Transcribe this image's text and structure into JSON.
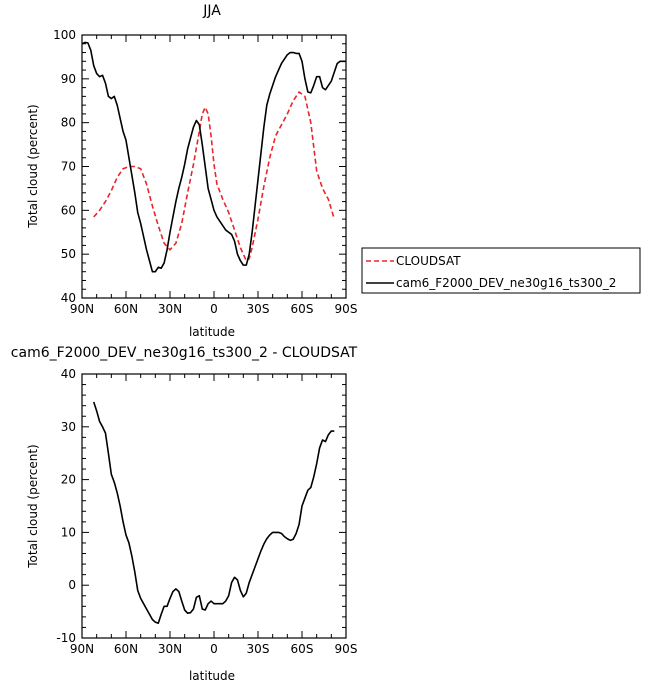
{
  "chart_data": [
    {
      "type": "line",
      "title": "JJA",
      "xlabel": "latitude",
      "ylabel": "Total cloud (percent)",
      "x_ticks": [
        "90N",
        "60N",
        "30N",
        "0",
        "30S",
        "60S",
        "90S"
      ],
      "x_tick_values": [
        90,
        60,
        30,
        0,
        -30,
        -60,
        -90
      ],
      "xlim": [
        90,
        -90
      ],
      "ylim": [
        40,
        100
      ],
      "y_ticks": [
        40,
        50,
        60,
        70,
        80,
        90,
        100
      ],
      "legend_position": "outside-right",
      "series": [
        {
          "name": "CLOUDSAT",
          "color": "#e8262b",
          "dash": "dashed",
          "x": [
            82,
            78,
            74,
            70,
            66,
            62,
            58,
            54,
            50,
            46,
            42,
            38,
            34,
            30,
            26,
            22,
            18,
            14,
            10,
            8,
            6,
            4,
            2,
            0,
            -2,
            -6,
            -10,
            -14,
            -18,
            -22,
            -24,
            -26,
            -30,
            -34,
            -38,
            -42,
            -46,
            -50,
            -54,
            -58,
            -62,
            -66,
            -70,
            -74,
            -78,
            -82
          ],
          "y": [
            58.5,
            60,
            62,
            64.5,
            67.5,
            69.5,
            70,
            70,
            69.5,
            66,
            61,
            56.5,
            52.5,
            51,
            52.5,
            57,
            64,
            70.5,
            78,
            82,
            83.5,
            82,
            77,
            70.5,
            66,
            62.5,
            59.5,
            55.5,
            51.5,
            48.5,
            49,
            51.5,
            58,
            65.5,
            72,
            77,
            79.5,
            82,
            85,
            87,
            86,
            80,
            69,
            65,
            62.5,
            58
          ]
        },
        {
          "name": "cam6_F2000_DEV_ne30g16_ts300_2",
          "color": "#000000",
          "dash": "solid",
          "x": [
            90,
            88,
            86,
            84,
            82,
            80,
            78,
            76,
            74,
            72,
            70,
            68,
            66,
            64,
            62,
            60,
            58,
            56,
            54,
            52,
            50,
            48,
            46,
            44,
            42,
            40,
            38,
            36,
            34,
            32,
            30,
            28,
            26,
            24,
            22,
            20,
            18,
            16,
            14,
            12,
            10,
            8,
            6,
            4,
            2,
            0,
            -2,
            -4,
            -6,
            -8,
            -10,
            -12,
            -14,
            -16,
            -18,
            -20,
            -22,
            -24,
            -26,
            -28,
            -30,
            -32,
            -34,
            -36,
            -38,
            -40,
            -42,
            -44,
            -46,
            -48,
            -50,
            -52,
            -54,
            -56,
            -58,
            -60,
            -62,
            -64,
            -66,
            -68,
            -70,
            -72,
            -74,
            -76,
            -78,
            -80,
            -82,
            -84,
            -86,
            -88,
            -90
          ],
          "y": [
            98,
            98.3,
            98.2,
            96.5,
            93,
            91.2,
            90.5,
            90.8,
            89,
            86,
            85.5,
            86,
            84,
            81,
            78,
            76,
            72,
            68,
            64,
            59.5,
            57,
            54,
            51,
            48.5,
            46,
            46,
            47,
            46.8,
            48,
            51,
            55,
            58.5,
            62,
            65,
            67.5,
            70.5,
            74,
            76.5,
            79,
            80.5,
            79.5,
            75,
            70,
            65,
            62.5,
            60,
            58.5,
            57.5,
            56.5,
            55.5,
            55,
            54.5,
            53,
            50,
            48.5,
            47.5,
            47.5,
            50,
            55,
            61,
            67,
            73,
            79,
            84,
            86.5,
            88.5,
            90.5,
            92,
            93.5,
            94.5,
            95.5,
            96,
            96,
            95.8,
            95.8,
            94,
            90,
            87,
            86.8,
            88.5,
            90.5,
            90.5,
            88,
            87.5,
            88.5,
            89.5,
            91.5,
            93.5,
            94,
            94,
            94
          ]
        }
      ]
    },
    {
      "type": "line",
      "title": "cam6_F2000_DEV_ne30g16_ts300_2 - CLOUDSAT",
      "xlabel": "latitude",
      "ylabel": "Total cloud (percent)",
      "x_ticks": [
        "90N",
        "60N",
        "30N",
        "0",
        "30S",
        "60S",
        "90S"
      ],
      "x_tick_values": [
        90,
        60,
        30,
        0,
        -30,
        -60,
        -90
      ],
      "xlim": [
        90,
        -90
      ],
      "ylim": [
        -10,
        40
      ],
      "y_ticks": [
        -10,
        0,
        10,
        20,
        30,
        40
      ],
      "series": [
        {
          "color": "#000000",
          "dash": "solid",
          "x": [
            82,
            80,
            78,
            76,
            74,
            72,
            70,
            68,
            66,
            64,
            62,
            60,
            58,
            56,
            54,
            52,
            50,
            48,
            46,
            44,
            42,
            40,
            38,
            36,
            34,
            32,
            30,
            28,
            26,
            24,
            22,
            20,
            18,
            16,
            14,
            12,
            10,
            8,
            6,
            4,
            2,
            0,
            -2,
            -4,
            -6,
            -8,
            -10,
            -12,
            -14,
            -16,
            -18,
            -20,
            -22,
            -24,
            -26,
            -28,
            -30,
            -32,
            -34,
            -36,
            -38,
            -40,
            -42,
            -44,
            -46,
            -48,
            -50,
            -52,
            -54,
            -56,
            -58,
            -60,
            -62,
            -64,
            -66,
            -68,
            -70,
            -72,
            -74,
            -76,
            -78,
            -80,
            -82
          ],
          "y": [
            34.7,
            33,
            31,
            30,
            28.8,
            25,
            21,
            19.5,
            17.5,
            15,
            12,
            9.5,
            8,
            5.5,
            2.5,
            -1,
            -2.5,
            -3.5,
            -4.5,
            -5.5,
            -6.5,
            -7,
            -7.2,
            -5.5,
            -4,
            -4,
            -2.5,
            -1.2,
            -0.7,
            -1.2,
            -3,
            -4.7,
            -5.3,
            -5.2,
            -4.5,
            -2.3,
            -2,
            -4.5,
            -4.7,
            -3.5,
            -3,
            -3.5,
            -3.5,
            -3.5,
            -3.5,
            -3,
            -2,
            0.5,
            1.5,
            1,
            -1,
            -2.2,
            -1.5,
            0.5,
            2,
            3.5,
            5,
            6.5,
            7.8,
            8.8,
            9.5,
            10,
            10,
            10,
            9.8,
            9.2,
            8.8,
            8.5,
            8.7,
            9.8,
            11.5,
            15,
            16.5,
            18,
            18.5,
            20.5,
            23,
            26,
            27.5,
            27.2,
            28.5,
            29.2,
            29.2
          ]
        }
      ]
    }
  ]
}
